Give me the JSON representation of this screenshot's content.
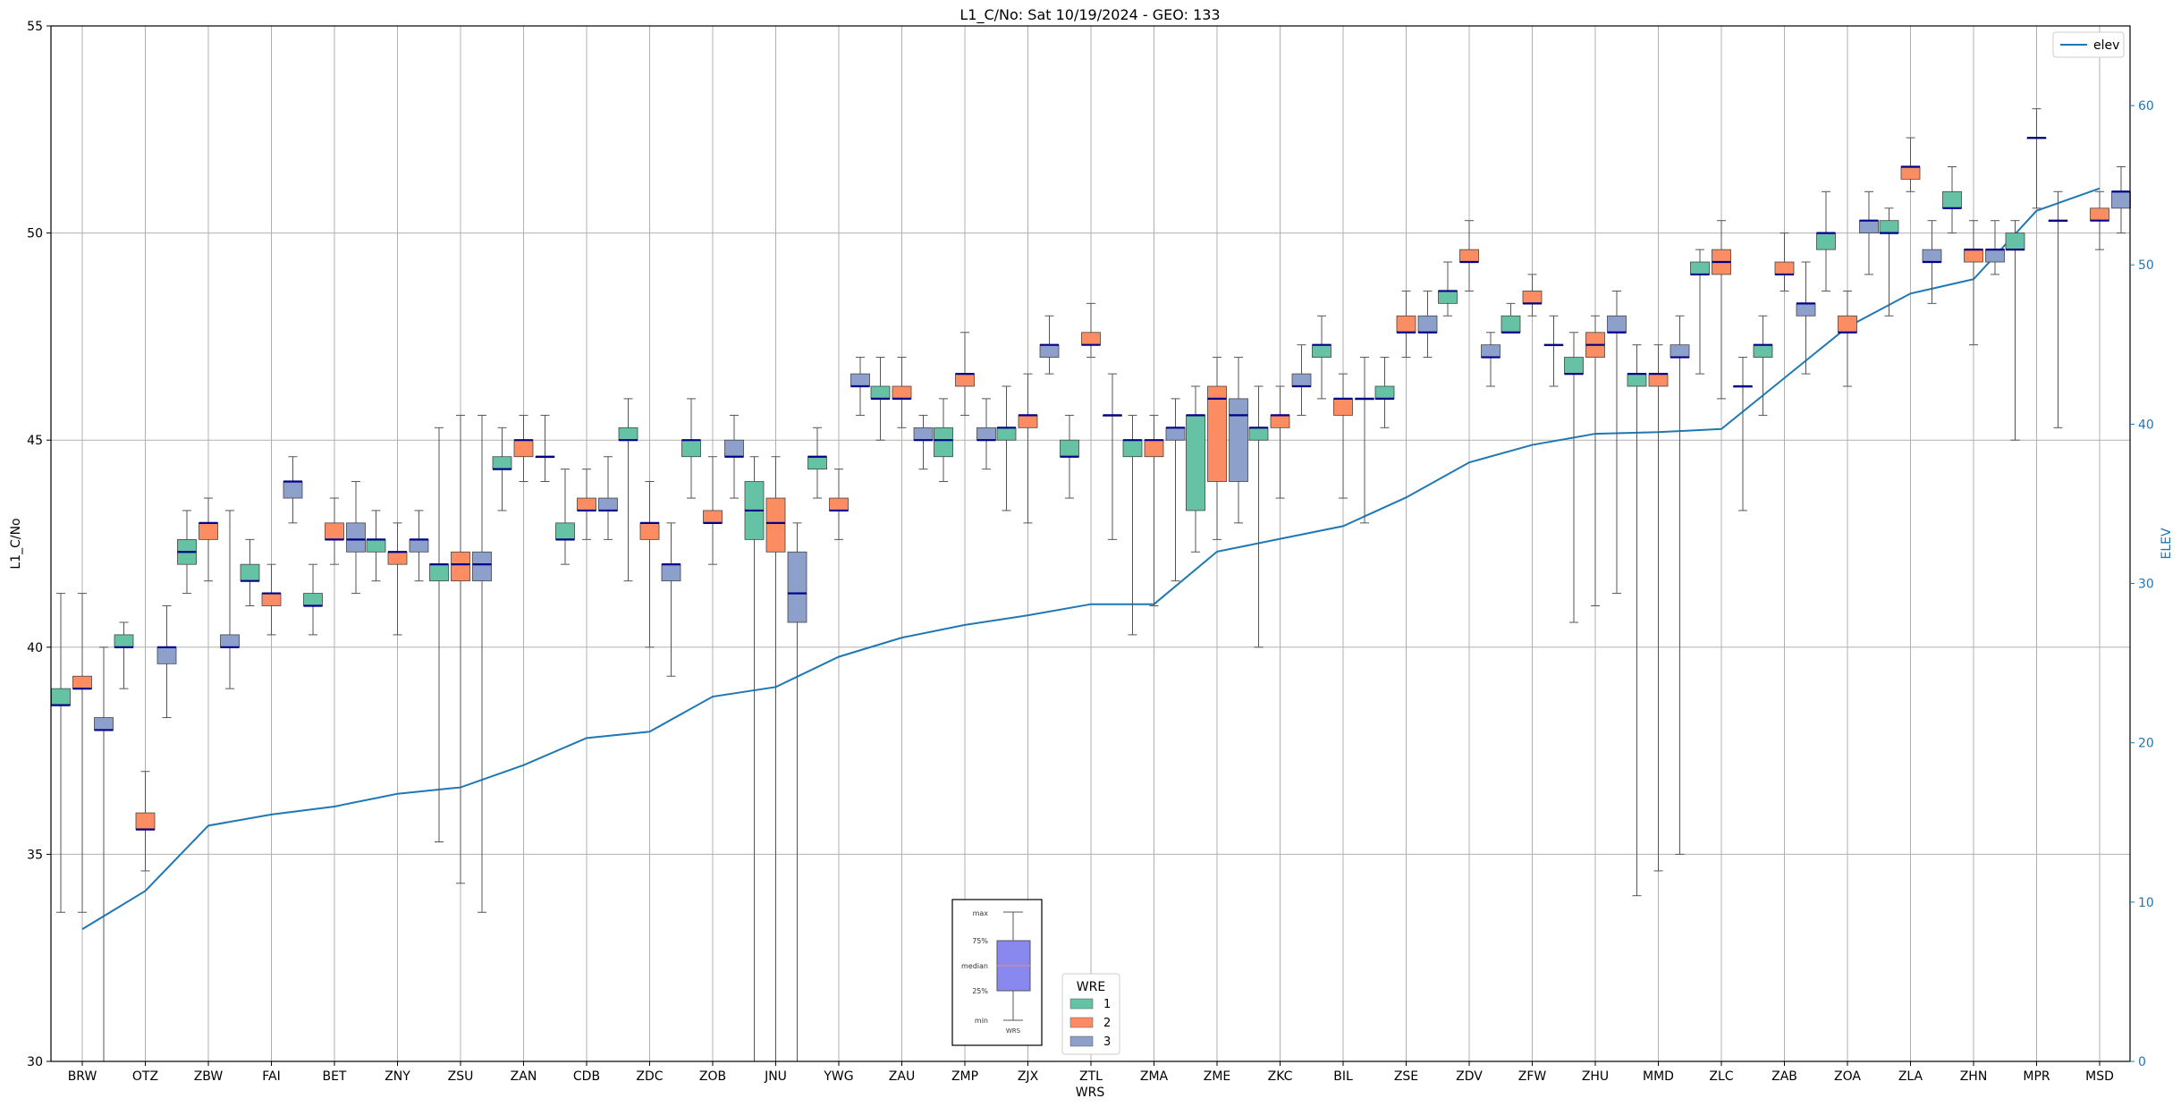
{
  "chart_data": {
    "type": "box",
    "title": "L1_C/No: Sat 10/19/2024 - GEO: 133",
    "xlabel": "WRS",
    "ylabel": "L1_C/No",
    "y2label": "ELEV",
    "ylim": [
      30,
      55
    ],
    "y2lim": [
      0,
      65
    ],
    "yticks": [
      30,
      35,
      40,
      45,
      50,
      55
    ],
    "y2ticks": [
      0,
      10,
      20,
      30,
      40,
      50,
      60
    ],
    "grid": true,
    "categories": [
      "BRW",
      "OTZ",
      "ZBW",
      "FAI",
      "BET",
      "ZNY",
      "ZSU",
      "ZAN",
      "CDB",
      "ZDC",
      "ZOB",
      "JNU",
      "YWG",
      "ZAU",
      "ZMP",
      "ZJX",
      "ZTL",
      "ZMA",
      "ZME",
      "ZKC",
      "BIL",
      "ZSE",
      "ZDV",
      "ZFW",
      "ZHU",
      "MMD",
      "ZLC",
      "ZAB",
      "ZOA",
      "ZLA",
      "ZHN",
      "MPR",
      "MSD"
    ],
    "legend": {
      "title": "WRE",
      "placement": "bottom-center",
      "entries": [
        "1",
        "2",
        "3"
      ]
    },
    "line_legend": {
      "label": "elev",
      "placement": "top-right"
    },
    "colors": {
      "wre1": "#66c2a5",
      "wre2": "#fc8d62",
      "wre3": "#8da0cb",
      "elev": "#1f77b4",
      "median": "#00008b",
      "whisker": "#555555"
    },
    "key": {
      "labels": [
        "max",
        "75%",
        "median",
        "25%",
        "min"
      ],
      "xlabel": "WRS"
    },
    "elev": [
      8.3,
      10.7,
      14.8,
      15.5,
      16.0,
      16.8,
      17.2,
      18.6,
      20.3,
      20.7,
      22.9,
      23.5,
      25.4,
      26.6,
      27.4,
      28.0,
      28.7,
      28.7,
      32.0,
      32.8,
      33.6,
      35.4,
      37.6,
      38.7,
      39.4,
      39.5,
      39.7,
      42.9,
      46.1,
      48.2,
      49.1,
      53.4,
      54.8
    ],
    "series": [
      {
        "name": "1",
        "boxes": [
          {
            "cat": "BRW",
            "min": 33.6,
            "q1": 38.6,
            "median": 38.6,
            "q3": 39.0,
            "max": 41.3
          },
          {
            "cat": "OTZ",
            "min": 39.0,
            "q1": 40.0,
            "median": 40.0,
            "q3": 40.3,
            "max": 40.6
          },
          {
            "cat": "ZBW",
            "min": 41.3,
            "q1": 42.0,
            "median": 42.3,
            "q3": 42.6,
            "max": 43.3
          },
          {
            "cat": "FAI",
            "min": 41.0,
            "q1": 41.6,
            "median": 41.6,
            "q3": 42.0,
            "max": 42.6
          },
          {
            "cat": "BET",
            "min": 40.3,
            "q1": 41.0,
            "median": 41.0,
            "q3": 41.3,
            "max": 42.0
          },
          {
            "cat": "ZNY",
            "min": 41.6,
            "q1": 42.3,
            "median": 42.6,
            "q3": 42.6,
            "max": 43.3
          },
          {
            "cat": "ZSU",
            "min": 35.3,
            "q1": 41.6,
            "median": 42.0,
            "q3": 42.0,
            "max": 45.3
          },
          {
            "cat": "ZAN",
            "min": 43.3,
            "q1": 44.3,
            "median": 44.3,
            "q3": 44.6,
            "max": 45.3
          },
          {
            "cat": "CDB",
            "min": 42.0,
            "q1": 42.6,
            "median": 42.6,
            "q3": 43.0,
            "max": 44.3
          },
          {
            "cat": "ZDC",
            "min": 41.6,
            "q1": 45.0,
            "median": 45.0,
            "q3": 45.3,
            "max": 46.0
          },
          {
            "cat": "ZOB",
            "min": 43.6,
            "q1": 44.6,
            "median": 45.0,
            "q3": 45.0,
            "max": 46.0
          },
          {
            "cat": "JNU",
            "min": 30.0,
            "q1": 42.6,
            "median": 43.3,
            "q3": 44.0,
            "max": 44.6
          },
          {
            "cat": "YWG",
            "min": 43.6,
            "q1": 44.3,
            "median": 44.6,
            "q3": 44.6,
            "max": 45.3
          },
          {
            "cat": "ZAU",
            "min": 45.0,
            "q1": 46.0,
            "median": 46.0,
            "q3": 46.3,
            "max": 47.0
          },
          {
            "cat": "ZMP",
            "min": 44.0,
            "q1": 44.6,
            "median": 45.0,
            "q3": 45.3,
            "max": 46.0
          },
          {
            "cat": "ZJX",
            "min": 43.3,
            "q1": 45.0,
            "median": 45.3,
            "q3": 45.3,
            "max": 46.3
          },
          {
            "cat": "ZTL",
            "min": 43.6,
            "q1": 44.6,
            "median": 44.6,
            "q3": 45.0,
            "max": 45.6
          },
          {
            "cat": "ZMA",
            "min": 40.3,
            "q1": 44.6,
            "median": 45.0,
            "q3": 45.0,
            "max": 45.6
          },
          {
            "cat": "ZME",
            "min": 42.3,
            "q1": 43.3,
            "median": 45.6,
            "q3": 45.6,
            "max": 46.3
          },
          {
            "cat": "ZKC",
            "min": 40.0,
            "q1": 45.0,
            "median": 45.3,
            "q3": 45.3,
            "max": 46.3
          },
          {
            "cat": "BIL",
            "min": 46.0,
            "q1": 47.0,
            "median": 47.3,
            "q3": 47.3,
            "max": 48.0
          },
          {
            "cat": "ZSE",
            "min": 45.3,
            "q1": 46.0,
            "median": 46.0,
            "q3": 46.3,
            "max": 47.0
          },
          {
            "cat": "ZDV",
            "min": 48.0,
            "q1": 48.3,
            "median": 48.6,
            "q3": 48.6,
            "max": 49.3
          },
          {
            "cat": "ZFW",
            "min": 47.6,
            "q1": 47.6,
            "median": 47.6,
            "q3": 48.0,
            "max": 48.3
          },
          {
            "cat": "ZHU",
            "min": 40.6,
            "q1": 46.6,
            "median": 46.6,
            "q3": 47.0,
            "max": 47.6
          },
          {
            "cat": "MMD",
            "min": 34.0,
            "q1": 46.3,
            "median": 46.6,
            "q3": 46.6,
            "max": 47.3
          },
          {
            "cat": "ZLC",
            "min": 46.6,
            "q1": 49.0,
            "median": 49.0,
            "q3": 49.3,
            "max": 49.6
          },
          {
            "cat": "ZAB",
            "min": 45.6,
            "q1": 47.0,
            "median": 47.3,
            "q3": 47.3,
            "max": 48.0
          },
          {
            "cat": "ZOA",
            "min": 48.6,
            "q1": 49.6,
            "median": 50.0,
            "q3": 50.0,
            "max": 51.0
          },
          {
            "cat": "ZLA",
            "min": 48.0,
            "q1": 50.0,
            "median": 50.0,
            "q3": 50.3,
            "max": 50.6
          },
          {
            "cat": "ZHN",
            "min": 50.0,
            "q1": 50.6,
            "median": 50.6,
            "q3": 51.0,
            "max": 51.6
          },
          {
            "cat": "MPR",
            "min": 45.0,
            "q1": 49.6,
            "median": 49.6,
            "q3": 50.0,
            "max": 50.3
          }
        ]
      },
      {
        "name": "2",
        "boxes": [
          {
            "cat": "BRW",
            "min": 33.6,
            "q1": 39.0,
            "median": 39.0,
            "q3": 39.3,
            "max": 41.3
          },
          {
            "cat": "OTZ",
            "min": 34.6,
            "q1": 35.6,
            "median": 35.6,
            "q3": 36.0,
            "max": 37.0
          },
          {
            "cat": "ZBW",
            "min": 41.6,
            "q1": 42.6,
            "median": 43.0,
            "q3": 43.0,
            "max": 43.6
          },
          {
            "cat": "FAI",
            "min": 40.3,
            "q1": 41.0,
            "median": 41.3,
            "q3": 41.3,
            "max": 42.0
          },
          {
            "cat": "BET",
            "min": 42.0,
            "q1": 42.6,
            "median": 42.6,
            "q3": 43.0,
            "max": 43.6
          },
          {
            "cat": "ZNY",
            "min": 40.3,
            "q1": 42.0,
            "median": 42.3,
            "q3": 42.3,
            "max": 43.0
          },
          {
            "cat": "ZSU",
            "min": 34.3,
            "q1": 41.6,
            "median": 42.0,
            "q3": 42.3,
            "max": 45.6
          },
          {
            "cat": "ZAN",
            "min": 44.0,
            "q1": 44.6,
            "median": 45.0,
            "q3": 45.0,
            "max": 45.6
          },
          {
            "cat": "CDB",
            "min": 42.6,
            "q1": 43.3,
            "median": 43.3,
            "q3": 43.6,
            "max": 44.3
          },
          {
            "cat": "ZDC",
            "min": 40.0,
            "q1": 42.6,
            "median": 43.0,
            "q3": 43.0,
            "max": 44.0
          },
          {
            "cat": "ZOB",
            "min": 42.0,
            "q1": 43.0,
            "median": 43.0,
            "q3": 43.3,
            "max": 44.6
          },
          {
            "cat": "JNU",
            "min": 30.0,
            "q1": 42.3,
            "median": 43.0,
            "q3": 43.6,
            "max": 44.6
          },
          {
            "cat": "YWG",
            "min": 42.6,
            "q1": 43.3,
            "median": 43.3,
            "q3": 43.6,
            "max": 44.3
          },
          {
            "cat": "ZAU",
            "min": 45.3,
            "q1": 46.0,
            "median": 46.0,
            "q3": 46.3,
            "max": 47.0
          },
          {
            "cat": "ZMP",
            "min": 45.6,
            "q1": 46.3,
            "median": 46.6,
            "q3": 46.6,
            "max": 47.6
          },
          {
            "cat": "ZJX",
            "min": 43.0,
            "q1": 45.3,
            "median": 45.6,
            "q3": 45.6,
            "max": 46.6
          },
          {
            "cat": "ZTL",
            "min": 47.0,
            "q1": 47.3,
            "median": 47.3,
            "q3": 47.6,
            "max": 48.3
          },
          {
            "cat": "ZMA",
            "min": 41.0,
            "q1": 44.6,
            "median": 45.0,
            "q3": 45.0,
            "max": 45.6
          },
          {
            "cat": "ZME",
            "min": 42.6,
            "q1": 44.0,
            "median": 46.0,
            "q3": 46.3,
            "max": 47.0
          },
          {
            "cat": "ZKC",
            "min": 43.6,
            "q1": 45.3,
            "median": 45.6,
            "q3": 45.6,
            "max": 46.3
          },
          {
            "cat": "BIL",
            "min": 43.6,
            "q1": 45.6,
            "median": 46.0,
            "q3": 46.0,
            "max": 46.6
          },
          {
            "cat": "ZSE",
            "min": 47.0,
            "q1": 47.6,
            "median": 47.6,
            "q3": 48.0,
            "max": 48.6
          },
          {
            "cat": "ZDV",
            "min": 48.6,
            "q1": 49.3,
            "median": 49.3,
            "q3": 49.6,
            "max": 50.3
          },
          {
            "cat": "ZFW",
            "min": 48.0,
            "q1": 48.3,
            "median": 48.3,
            "q3": 48.6,
            "max": 49.0
          },
          {
            "cat": "ZHU",
            "min": 41.0,
            "q1": 47.0,
            "median": 47.3,
            "q3": 47.6,
            "max": 48.0
          },
          {
            "cat": "MMD",
            "min": 34.6,
            "q1": 46.3,
            "median": 46.6,
            "q3": 46.6,
            "max": 47.3
          },
          {
            "cat": "ZLC",
            "min": 46.0,
            "q1": 49.0,
            "median": 49.3,
            "q3": 49.6,
            "max": 50.3
          },
          {
            "cat": "ZAB",
            "min": 48.6,
            "q1": 49.0,
            "median": 49.0,
            "q3": 49.3,
            "max": 50.0
          },
          {
            "cat": "ZOA",
            "min": 46.3,
            "q1": 47.6,
            "median": 47.6,
            "q3": 48.0,
            "max": 48.6
          },
          {
            "cat": "ZLA",
            "min": 51.0,
            "q1": 51.3,
            "median": 51.6,
            "q3": 51.6,
            "max": 52.3
          },
          {
            "cat": "ZHN",
            "min": 47.3,
            "q1": 49.3,
            "median": 49.6,
            "q3": 49.6,
            "max": 50.3
          },
          {
            "cat": "MSD",
            "min": 49.6,
            "q1": 50.3,
            "median": 50.3,
            "q3": 50.6,
            "max": 51.0
          }
        ]
      },
      {
        "name": "3",
        "boxes": [
          {
            "cat": "BRW",
            "min": 30.0,
            "q1": 38.0,
            "median": 38.0,
            "q3": 38.3,
            "max": 40.0
          },
          {
            "cat": "OTZ",
            "min": 38.3,
            "q1": 39.6,
            "median": 40.0,
            "q3": 40.0,
            "max": 41.0
          },
          {
            "cat": "ZBW",
            "min": 39.0,
            "q1": 40.0,
            "median": 40.0,
            "q3": 40.3,
            "max": 43.3
          },
          {
            "cat": "FAI",
            "min": 43.0,
            "q1": 43.6,
            "median": 44.0,
            "q3": 44.0,
            "max": 44.6
          },
          {
            "cat": "BET",
            "min": 41.3,
            "q1": 42.3,
            "median": 42.6,
            "q3": 43.0,
            "max": 44.0
          },
          {
            "cat": "ZNY",
            "min": 41.6,
            "q1": 42.3,
            "median": 42.6,
            "q3": 42.6,
            "max": 43.3
          },
          {
            "cat": "ZSU",
            "min": 33.6,
            "q1": 41.6,
            "median": 42.0,
            "q3": 42.3,
            "max": 45.6
          },
          {
            "cat": "ZAN",
            "min": 44.0,
            "q1": 44.6,
            "median": 44.6,
            "q3": 44.6,
            "max": 45.6
          },
          {
            "cat": "CDB",
            "min": 42.6,
            "q1": 43.3,
            "median": 43.3,
            "q3": 43.6,
            "max": 44.6
          },
          {
            "cat": "ZDC",
            "min": 39.3,
            "q1": 41.6,
            "median": 42.0,
            "q3": 42.0,
            "max": 43.0
          },
          {
            "cat": "ZOB",
            "min": 43.6,
            "q1": 44.6,
            "median": 44.6,
            "q3": 45.0,
            "max": 45.6
          },
          {
            "cat": "JNU",
            "min": 30.0,
            "q1": 40.6,
            "median": 41.3,
            "q3": 42.3,
            "max": 43.0
          },
          {
            "cat": "YWG",
            "min": 45.6,
            "q1": 46.3,
            "median": 46.3,
            "q3": 46.6,
            "max": 47.0
          },
          {
            "cat": "ZAU",
            "min": 44.3,
            "q1": 45.0,
            "median": 45.0,
            "q3": 45.3,
            "max": 45.6
          },
          {
            "cat": "ZMP",
            "min": 44.3,
            "q1": 45.0,
            "median": 45.0,
            "q3": 45.3,
            "max": 46.0
          },
          {
            "cat": "ZJX",
            "min": 46.6,
            "q1": 47.0,
            "median": 47.3,
            "q3": 47.3,
            "max": 48.0
          },
          {
            "cat": "ZTL",
            "min": 42.6,
            "q1": 45.6,
            "median": 45.6,
            "q3": 45.6,
            "max": 46.6
          },
          {
            "cat": "ZMA",
            "min": 41.6,
            "q1": 45.0,
            "median": 45.3,
            "q3": 45.3,
            "max": 46.0
          },
          {
            "cat": "ZME",
            "min": 43.0,
            "q1": 44.0,
            "median": 45.6,
            "q3": 46.0,
            "max": 47.0
          },
          {
            "cat": "ZKC",
            "min": 45.6,
            "q1": 46.3,
            "median": 46.3,
            "q3": 46.6,
            "max": 47.3
          },
          {
            "cat": "BIL",
            "min": 43.0,
            "q1": 46.0,
            "median": 46.0,
            "q3": 46.0,
            "max": 47.0
          },
          {
            "cat": "ZSE",
            "min": 47.0,
            "q1": 47.6,
            "median": 47.6,
            "q3": 48.0,
            "max": 48.6
          },
          {
            "cat": "ZDV",
            "min": 46.3,
            "q1": 47.0,
            "median": 47.0,
            "q3": 47.3,
            "max": 47.6
          },
          {
            "cat": "ZFW",
            "min": 46.3,
            "q1": 47.3,
            "median": 47.3,
            "q3": 47.3,
            "max": 48.0
          },
          {
            "cat": "ZHU",
            "min": 41.3,
            "q1": 47.6,
            "median": 47.6,
            "q3": 48.0,
            "max": 48.6
          },
          {
            "cat": "MMD",
            "min": 35.0,
            "q1": 47.0,
            "median": 47.0,
            "q3": 47.3,
            "max": 48.0
          },
          {
            "cat": "ZLC",
            "min": 43.3,
            "q1": 46.3,
            "median": 46.3,
            "q3": 46.3,
            "max": 47.0
          },
          {
            "cat": "ZAB",
            "min": 46.6,
            "q1": 48.0,
            "median": 48.3,
            "q3": 48.3,
            "max": 49.3
          },
          {
            "cat": "ZOA",
            "min": 49.0,
            "q1": 50.0,
            "median": 50.3,
            "q3": 50.3,
            "max": 51.0
          },
          {
            "cat": "ZLA",
            "min": 48.3,
            "q1": 49.3,
            "median": 49.3,
            "q3": 49.6,
            "max": 50.3
          },
          {
            "cat": "ZHN",
            "min": 49.0,
            "q1": 49.3,
            "median": 49.6,
            "q3": 49.6,
            "max": 50.3
          },
          {
            "cat": "MPR",
            "min": 45.3,
            "q1": 50.3,
            "median": 50.3,
            "q3": 50.3,
            "max": 51.0
          },
          {
            "cat": "MSD",
            "min": 50.0,
            "q1": 50.6,
            "median": 51.0,
            "q3": 51.0,
            "max": 51.6
          }
        ]
      },
      {
        "name": "",
        "boxes": [
          {
            "cat": "MPR",
            "min": 50.6,
            "q1": 52.3,
            "median": 52.3,
            "q3": 52.3,
            "max": 53.0
          }
        ]
      }
    ]
  }
}
